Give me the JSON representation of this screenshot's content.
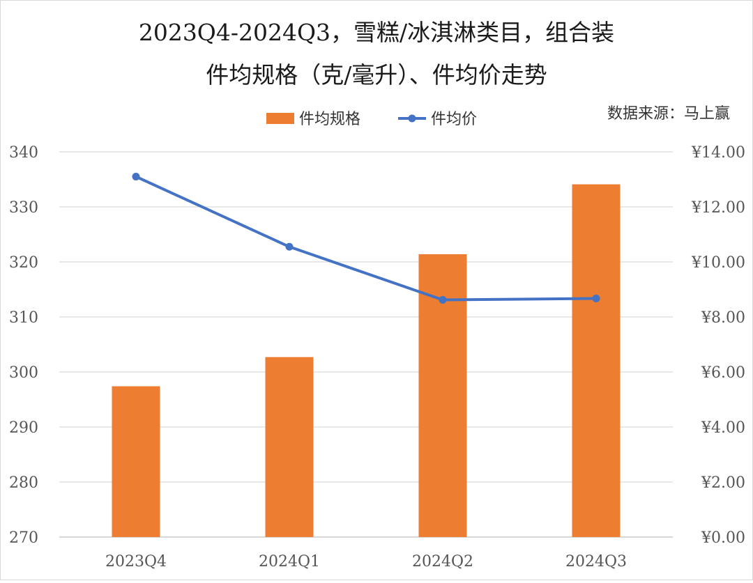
{
  "chart_data": {
    "type": "bar+line",
    "title_lines": [
      "2023Q4-2024Q3，雪糕/冰淇淋类目，组合装",
      "件均规格（克/毫升）、件均价走势"
    ],
    "source": "数据来源：马上赢",
    "categories": [
      "2023Q4",
      "2024Q1",
      "2024Q2",
      "2024Q3"
    ],
    "y_left": {
      "min": 270,
      "max": 340,
      "step": 10,
      "ticks": [
        "270",
        "280",
        "290",
        "300",
        "310",
        "320",
        "330",
        "340"
      ]
    },
    "y_right": {
      "min": 0,
      "max": 14,
      "step": 2,
      "ticks": [
        "¥0.00",
        "¥2.00",
        "¥4.00",
        "¥6.00",
        "¥8.00",
        "¥10.00",
        "¥12.00",
        "¥14.00"
      ]
    },
    "series": [
      {
        "name": "件均规格",
        "type": "bar",
        "axis": "left",
        "color": "#ED7D31",
        "values": [
          297.4,
          302.7,
          321.4,
          334.1
        ]
      },
      {
        "name": "件均价",
        "type": "line",
        "axis": "right",
        "color": "#4472C4",
        "values": [
          13.1,
          10.55,
          8.62,
          8.67
        ]
      }
    ],
    "grid": true,
    "legend_position": "top-center"
  }
}
